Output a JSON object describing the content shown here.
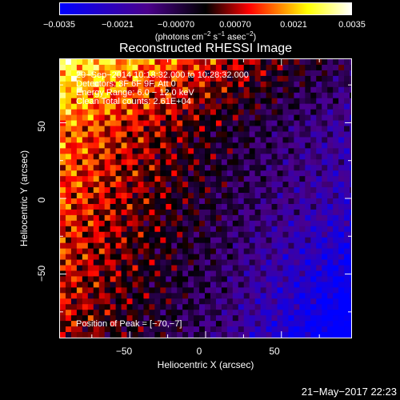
{
  "colorbar": {
    "ticks": [
      "−0.0035",
      "−0.0021",
      "−0.00070",
      "0.00070",
      "0.0021",
      "0.0035"
    ],
    "unit_prefix": "(photons cm",
    "unit_exp1": "−2",
    "unit_mid1": " s",
    "unit_exp2": "−1",
    "unit_mid2": " asec",
    "unit_exp3": "−2",
    "unit_suffix": ")",
    "colors": [
      "#0000ff",
      "#4b008c",
      "#000000",
      "#ff0000",
      "#ffff00",
      "#ffffff"
    ]
  },
  "chart_data": {
    "type": "heatmap",
    "title": "Reconstructed RHESSI Image",
    "xlabel": "Heliocentric X (arcsec)",
    "ylabel": "Heliocentric Y (arcsec)",
    "xlim": [
      -96,
      96
    ],
    "ylim": [
      -92,
      92
    ],
    "zlim": [
      -0.0035,
      0.0035
    ],
    "x_ticks": [
      "−50",
      "0",
      "50"
    ],
    "x_tick_values": [
      -50,
      0,
      50
    ],
    "y_ticks": [
      "−50",
      "0",
      "50"
    ],
    "y_tick_values": [
      -50,
      0,
      50
    ],
    "peak": [
      -70,
      -7
    ],
    "annotations": {
      "line1": "29−Sep−2014 10:18:32.000 to 10:28:32.000",
      "line2": "Detectors: 3F 6F 9F, Att 0",
      "line3": "Energy Range: 6.0 − 12.0 keV",
      "line4": "Clean     Total counts: 2.61E+04",
      "peak_label": "Position of Peak = [−70,−7]"
    }
  },
  "footer": {
    "timestamp": "21−May−2017 22:23"
  }
}
